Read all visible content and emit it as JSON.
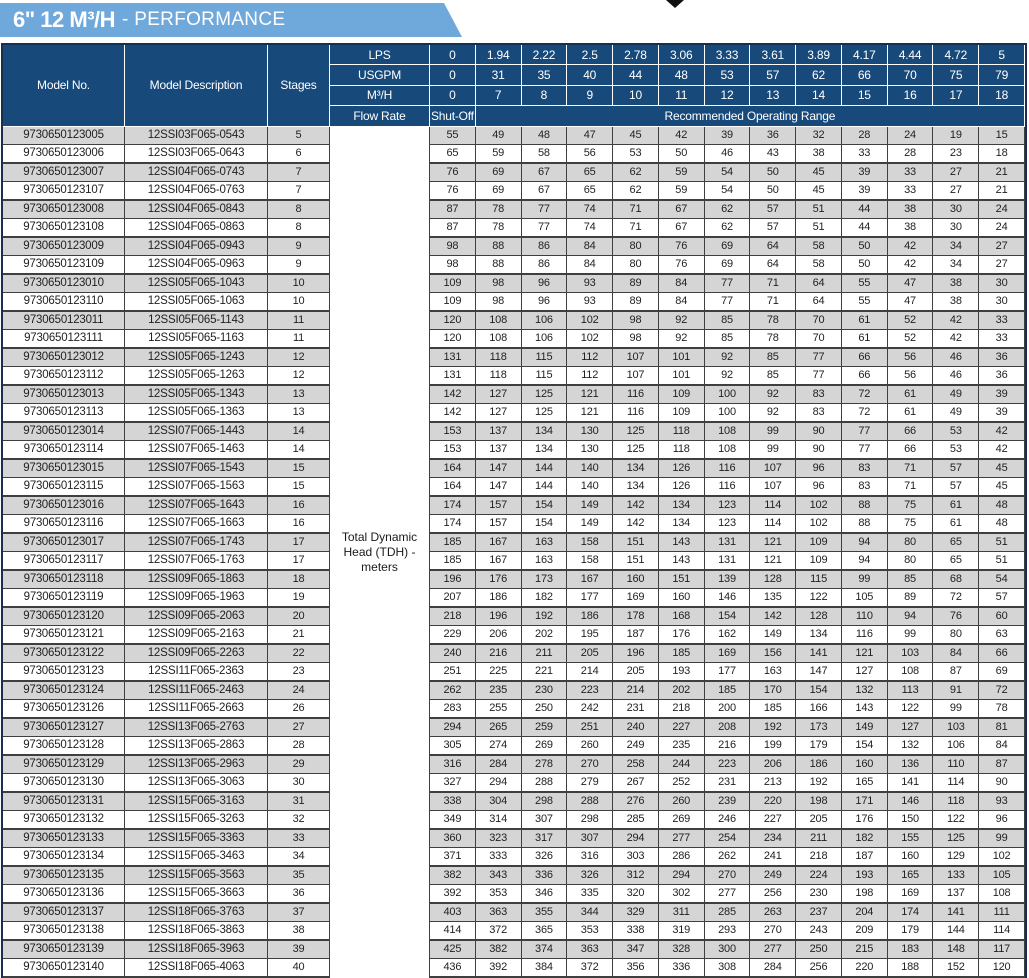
{
  "title": {
    "bold": "6\" 12 M³/H",
    "regular": "- PERFORMANCE"
  },
  "colors": {
    "banner_blue": "#6FA9DB",
    "header_navy": "#17497B",
    "row_shaded_gray": "#D5D5D5",
    "grid_border": "#3F3F3F",
    "title_text": "#FFFFFF"
  },
  "table": {
    "column_headers": {
      "model_no": "Model No.",
      "model_description": "Model Description",
      "stages": "Stages"
    },
    "flow_header": {
      "unit_rows": [
        {
          "label": "LPS",
          "values": [
            "0",
            "1.94",
            "2.22",
            "2.5",
            "2.78",
            "3.06",
            "3.33",
            "3.61",
            "3.89",
            "4.17",
            "4.44",
            "4.72",
            "5"
          ]
        },
        {
          "label": "USGPM",
          "values": [
            "0",
            "31",
            "35",
            "40",
            "44",
            "48",
            "53",
            "57",
            "62",
            "66",
            "70",
            "75",
            "79"
          ]
        },
        {
          "label": "M³/H",
          "values": [
            "0",
            "7",
            "8",
            "9",
            "10",
            "11",
            "12",
            "13",
            "14",
            "15",
            "16",
            "17",
            "18"
          ]
        }
      ],
      "flow_rate_label": "Flow Rate",
      "shut_off_label": "Shut-Off",
      "operating_range_label": "Recommended Operating Range"
    },
    "tdh_label": "Total Dynamic Head (TDH) - meters",
    "rows": [
      {
        "model_no": "9730650123005",
        "description": "12SSI03F065-0543",
        "stages": "5",
        "values": [
          55,
          49,
          48,
          47,
          45,
          42,
          39,
          36,
          32,
          28,
          24,
          19,
          15
        ]
      },
      {
        "model_no": "9730650123006",
        "description": "12SSI03F065-0643",
        "stages": "6",
        "values": [
          65,
          59,
          58,
          56,
          53,
          50,
          46,
          43,
          38,
          33,
          28,
          23,
          18
        ]
      },
      {
        "model_no": "9730650123007",
        "description": "12SSI04F065-0743",
        "stages": "7",
        "values": [
          76,
          69,
          67,
          65,
          62,
          59,
          54,
          50,
          45,
          39,
          33,
          27,
          21
        ]
      },
      {
        "model_no": "9730650123107",
        "description": "12SSI04F065-0763",
        "stages": "7",
        "values": [
          76,
          69,
          67,
          65,
          62,
          59,
          54,
          50,
          45,
          39,
          33,
          27,
          21
        ]
      },
      {
        "model_no": "9730650123008",
        "description": "12SSI04F065-0843",
        "stages": "8",
        "values": [
          87,
          78,
          77,
          74,
          71,
          67,
          62,
          57,
          51,
          44,
          38,
          30,
          24
        ]
      },
      {
        "model_no": "9730650123108",
        "description": "12SSI04F065-0863",
        "stages": "8",
        "values": [
          87,
          78,
          77,
          74,
          71,
          67,
          62,
          57,
          51,
          44,
          38,
          30,
          24
        ]
      },
      {
        "model_no": "9730650123009",
        "description": "12SSI04F065-0943",
        "stages": "9",
        "values": [
          98,
          88,
          86,
          84,
          80,
          76,
          69,
          64,
          58,
          50,
          42,
          34,
          27
        ]
      },
      {
        "model_no": "9730650123109",
        "description": "12SSI04F065-0963",
        "stages": "9",
        "values": [
          98,
          88,
          86,
          84,
          80,
          76,
          69,
          64,
          58,
          50,
          42,
          34,
          27
        ]
      },
      {
        "model_no": "9730650123010",
        "description": "12SSI05F065-1043",
        "stages": "10",
        "values": [
          109,
          98,
          96,
          93,
          89,
          84,
          77,
          71,
          64,
          55,
          47,
          38,
          30
        ]
      },
      {
        "model_no": "9730650123110",
        "description": "12SSI05F065-1063",
        "stages": "10",
        "values": [
          109,
          98,
          96,
          93,
          89,
          84,
          77,
          71,
          64,
          55,
          47,
          38,
          30
        ]
      },
      {
        "model_no": "9730650123011",
        "description": "12SSI05F065-1143",
        "stages": "11",
        "values": [
          120,
          108,
          106,
          102,
          98,
          92,
          85,
          78,
          70,
          61,
          52,
          42,
          33
        ]
      },
      {
        "model_no": "9730650123111",
        "description": "12SSI05F065-1163",
        "stages": "11",
        "values": [
          120,
          108,
          106,
          102,
          98,
          92,
          85,
          78,
          70,
          61,
          52,
          42,
          33
        ]
      },
      {
        "model_no": "9730650123012",
        "description": "12SSI05F065-1243",
        "stages": "12",
        "values": [
          131,
          118,
          115,
          112,
          107,
          101,
          92,
          85,
          77,
          66,
          56,
          46,
          36
        ]
      },
      {
        "model_no": "9730650123112",
        "description": "12SSI05F065-1263",
        "stages": "12",
        "values": [
          131,
          118,
          115,
          112,
          107,
          101,
          92,
          85,
          77,
          66,
          56,
          46,
          36
        ]
      },
      {
        "model_no": "9730650123013",
        "description": "12SSI05F065-1343",
        "stages": "13",
        "values": [
          142,
          127,
          125,
          121,
          116,
          109,
          100,
          92,
          83,
          72,
          61,
          49,
          39
        ]
      },
      {
        "model_no": "9730650123113",
        "description": "12SSI05F065-1363",
        "stages": "13",
        "values": [
          142,
          127,
          125,
          121,
          116,
          109,
          100,
          92,
          83,
          72,
          61,
          49,
          39
        ]
      },
      {
        "model_no": "9730650123014",
        "description": "12SSI07F065-1443",
        "stages": "14",
        "values": [
          153,
          137,
          134,
          130,
          125,
          118,
          108,
          99,
          90,
          77,
          66,
          53,
          42
        ]
      },
      {
        "model_no": "9730650123114",
        "description": "12SSI07F065-1463",
        "stages": "14",
        "values": [
          153,
          137,
          134,
          130,
          125,
          118,
          108,
          99,
          90,
          77,
          66,
          53,
          42
        ]
      },
      {
        "model_no": "9730650123015",
        "description": "12SSI07F065-1543",
        "stages": "15",
        "values": [
          164,
          147,
          144,
          140,
          134,
          126,
          116,
          107,
          96,
          83,
          71,
          57,
          45
        ]
      },
      {
        "model_no": "9730650123115",
        "description": "12SSI07F065-1563",
        "stages": "15",
        "values": [
          164,
          147,
          144,
          140,
          134,
          126,
          116,
          107,
          96,
          83,
          71,
          57,
          45
        ]
      },
      {
        "model_no": "9730650123016",
        "description": "12SSI07F065-1643",
        "stages": "16",
        "values": [
          174,
          157,
          154,
          149,
          142,
          134,
          123,
          114,
          102,
          88,
          75,
          61,
          48
        ]
      },
      {
        "model_no": "9730650123116",
        "description": "12SSI07F065-1663",
        "stages": "16",
        "values": [
          174,
          157,
          154,
          149,
          142,
          134,
          123,
          114,
          102,
          88,
          75,
          61,
          48
        ]
      },
      {
        "model_no": "9730650123017",
        "description": "12SSI07F065-1743",
        "stages": "17",
        "values": [
          185,
          167,
          163,
          158,
          151,
          143,
          131,
          121,
          109,
          94,
          80,
          65,
          51
        ]
      },
      {
        "model_no": "9730650123117",
        "description": "12SSI07F065-1763",
        "stages": "17",
        "values": [
          185,
          167,
          163,
          158,
          151,
          143,
          131,
          121,
          109,
          94,
          80,
          65,
          51
        ]
      },
      {
        "model_no": "9730650123118",
        "description": "12SSI09F065-1863",
        "stages": "18",
        "values": [
          196,
          176,
          173,
          167,
          160,
          151,
          139,
          128,
          115,
          99,
          85,
          68,
          54
        ]
      },
      {
        "model_no": "9730650123119",
        "description": "12SSI09F065-1963",
        "stages": "19",
        "values": [
          207,
          186,
          182,
          177,
          169,
          160,
          146,
          135,
          122,
          105,
          89,
          72,
          57
        ]
      },
      {
        "model_no": "9730650123120",
        "description": "12SSI09F065-2063",
        "stages": "20",
        "values": [
          218,
          196,
          192,
          186,
          178,
          168,
          154,
          142,
          128,
          110,
          94,
          76,
          60
        ]
      },
      {
        "model_no": "9730650123121",
        "description": "12SSI09F065-2163",
        "stages": "21",
        "values": [
          229,
          206,
          202,
          195,
          187,
          176,
          162,
          149,
          134,
          116,
          99,
          80,
          63
        ]
      },
      {
        "model_no": "9730650123122",
        "description": "12SSI09F065-2263",
        "stages": "22",
        "values": [
          240,
          216,
          211,
          205,
          196,
          185,
          169,
          156,
          141,
          121,
          103,
          84,
          66
        ]
      },
      {
        "model_no": "9730650123123",
        "description": "12SSI11F065-2363",
        "stages": "23",
        "values": [
          251,
          225,
          221,
          214,
          205,
          193,
          177,
          163,
          147,
          127,
          108,
          87,
          69
        ]
      },
      {
        "model_no": "9730650123124",
        "description": "12SSI11F065-2463",
        "stages": "24",
        "values": [
          262,
          235,
          230,
          223,
          214,
          202,
          185,
          170,
          154,
          132,
          113,
          91,
          72
        ]
      },
      {
        "model_no": "9730650123126",
        "description": "12SSI11F065-2663",
        "stages": "26",
        "values": [
          283,
          255,
          250,
          242,
          231,
          218,
          200,
          185,
          166,
          143,
          122,
          99,
          78
        ]
      },
      {
        "model_no": "9730650123127",
        "description": "12SSI13F065-2763",
        "stages": "27",
        "values": [
          294,
          265,
          259,
          251,
          240,
          227,
          208,
          192,
          173,
          149,
          127,
          103,
          81
        ]
      },
      {
        "model_no": "9730650123128",
        "description": "12SSI13F065-2863",
        "stages": "28",
        "values": [
          305,
          274,
          269,
          260,
          249,
          235,
          216,
          199,
          179,
          154,
          132,
          106,
          84
        ]
      },
      {
        "model_no": "9730650123129",
        "description": "12SSI13F065-2963",
        "stages": "29",
        "values": [
          316,
          284,
          278,
          270,
          258,
          244,
          223,
          206,
          186,
          160,
          136,
          110,
          87
        ]
      },
      {
        "model_no": "9730650123130",
        "description": "12SSI13F065-3063",
        "stages": "30",
        "values": [
          327,
          294,
          288,
          279,
          267,
          252,
          231,
          213,
          192,
          165,
          141,
          114,
          90
        ]
      },
      {
        "model_no": "9730650123131",
        "description": "12SSI15F065-3163",
        "stages": "31",
        "values": [
          338,
          304,
          298,
          288,
          276,
          260,
          239,
          220,
          198,
          171,
          146,
          118,
          93
        ]
      },
      {
        "model_no": "9730650123132",
        "description": "12SSI15F065-3263",
        "stages": "32",
        "values": [
          349,
          314,
          307,
          298,
          285,
          269,
          246,
          227,
          205,
          176,
          150,
          122,
          96
        ]
      },
      {
        "model_no": "9730650123133",
        "description": "12SSI15F065-3363",
        "stages": "33",
        "values": [
          360,
          323,
          317,
          307,
          294,
          277,
          254,
          234,
          211,
          182,
          155,
          125,
          99
        ]
      },
      {
        "model_no": "9730650123134",
        "description": "12SSI15F065-3463",
        "stages": "34",
        "values": [
          371,
          333,
          326,
          316,
          303,
          286,
          262,
          241,
          218,
          187,
          160,
          129,
          102
        ]
      },
      {
        "model_no": "9730650123135",
        "description": "12SSI15F065-3563",
        "stages": "35",
        "values": [
          382,
          343,
          336,
          326,
          312,
          294,
          270,
          249,
          224,
          193,
          165,
          133,
          105
        ]
      },
      {
        "model_no": "9730650123136",
        "description": "12SSI15F065-3663",
        "stages": "36",
        "values": [
          392,
          353,
          346,
          335,
          320,
          302,
          277,
          256,
          230,
          198,
          169,
          137,
          108
        ]
      },
      {
        "model_no": "9730650123137",
        "description": "12SSI18F065-3763",
        "stages": "37",
        "values": [
          403,
          363,
          355,
          344,
          329,
          311,
          285,
          263,
          237,
          204,
          174,
          141,
          111
        ]
      },
      {
        "model_no": "9730650123138",
        "description": "12SSI18F065-3863",
        "stages": "38",
        "values": [
          414,
          372,
          365,
          353,
          338,
          319,
          293,
          270,
          243,
          209,
          179,
          144,
          114
        ]
      },
      {
        "model_no": "9730650123139",
        "description": "12SSI18F065-3963",
        "stages": "39",
        "values": [
          425,
          382,
          374,
          363,
          347,
          328,
          300,
          277,
          250,
          215,
          183,
          148,
          117
        ]
      },
      {
        "model_no": "9730650123140",
        "description": "12SSI18F065-4063",
        "stages": "40",
        "values": [
          436,
          392,
          384,
          372,
          356,
          336,
          308,
          284,
          256,
          220,
          188,
          152,
          120
        ]
      }
    ]
  }
}
